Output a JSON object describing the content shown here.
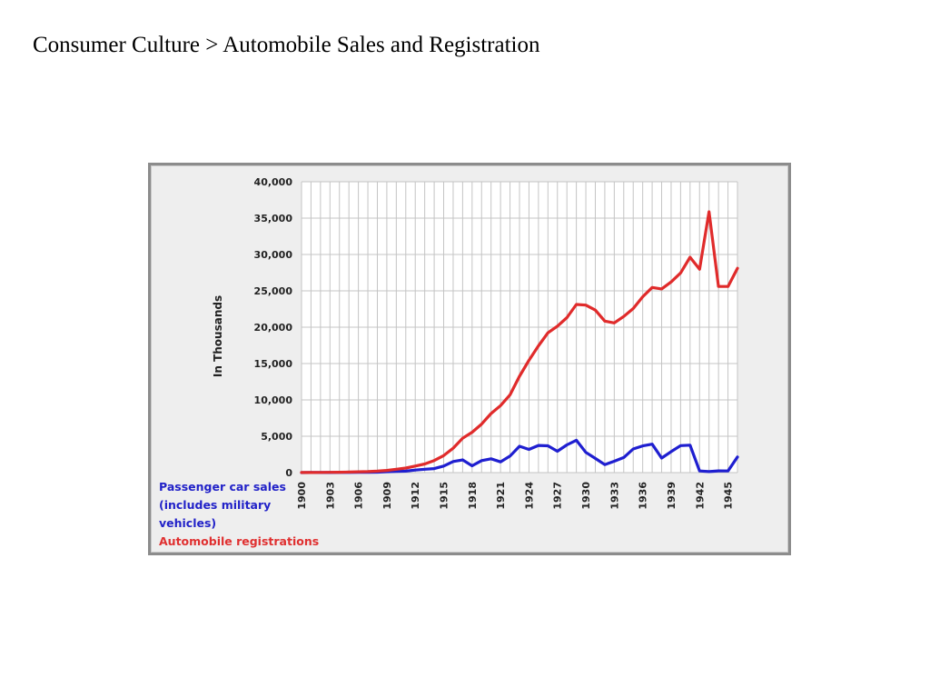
{
  "slide": {
    "title": "Consumer Culture > Automobile Sales and Registration"
  },
  "chart_data": {
    "type": "line",
    "ylabel": "In Thousands",
    "xlabel": "",
    "ylim": [
      0,
      40000
    ],
    "yticks": [
      0,
      5000,
      10000,
      15000,
      20000,
      25000,
      30000,
      35000,
      40000
    ],
    "ytick_labels": [
      "0",
      "5,000",
      "10,000",
      "15,000",
      "20,000",
      "25,000",
      "30,000",
      "35,000",
      "40,000"
    ],
    "xlim": [
      1900,
      1946
    ],
    "xticks": [
      1900,
      1903,
      1906,
      1909,
      1912,
      1915,
      1918,
      1921,
      1924,
      1927,
      1930,
      1933,
      1936,
      1939,
      1942,
      1945
    ],
    "grid": true,
    "legend_position": "bottom-left",
    "series": [
      {
        "name": "Passenger car sales (includes military vehicles)",
        "color": "#1f1fd0",
        "x": [
          1900,
          1901,
          1902,
          1903,
          1904,
          1905,
          1906,
          1907,
          1908,
          1909,
          1910,
          1911,
          1912,
          1913,
          1914,
          1915,
          1916,
          1917,
          1918,
          1919,
          1920,
          1921,
          1922,
          1923,
          1924,
          1925,
          1926,
          1927,
          1928,
          1929,
          1930,
          1931,
          1932,
          1933,
          1934,
          1935,
          1936,
          1937,
          1938,
          1939,
          1940,
          1941,
          1942,
          1943,
          1944,
          1945,
          1946
        ],
        "values": [
          5,
          7,
          9,
          11,
          22,
          24,
          33,
          43,
          64,
          124,
          181,
          199,
          356,
          462,
          548,
          896,
          1526,
          1746,
          943,
          1652,
          1906,
          1469,
          2274,
          3625,
          3186,
          3736,
          3693,
          2937,
          3815,
          4455,
          2787,
          1948,
          1104,
          1561,
          2070,
          3252,
          3669,
          3916,
          2001,
          2888,
          3717,
          3780,
          223,
          139,
          240,
          228,
          2149
        ]
      },
      {
        "name": "Automobile registrations",
        "color": "#e02b2b",
        "x": [
          1900,
          1901,
          1902,
          1903,
          1904,
          1905,
          1906,
          1907,
          1908,
          1909,
          1910,
          1911,
          1912,
          1913,
          1914,
          1915,
          1916,
          1917,
          1918,
          1919,
          1920,
          1921,
          1922,
          1923,
          1924,
          1925,
          1926,
          1927,
          1928,
          1929,
          1930,
          1931,
          1932,
          1933,
          1934,
          1935,
          1936,
          1937,
          1938,
          1939,
          1940,
          1941,
          1942,
          1943,
          1944,
          1945,
          1946
        ],
        "values": [
          8,
          15,
          23,
          33,
          55,
          78,
          108,
          140,
          194,
          306,
          458,
          619,
          902,
          1190,
          1664,
          2332,
          3368,
          4727,
          5555,
          6679,
          8131,
          9212,
          10704,
          13253,
          15436,
          17440,
          19221,
          20142,
          21308,
          23121,
          23035,
          22347,
          20833,
          20586,
          21472,
          22568,
          24183,
          25467,
          25262,
          26226,
          27465,
          29624,
          27973,
          35880,
          25600,
          25600,
          28100
        ]
      }
    ]
  }
}
